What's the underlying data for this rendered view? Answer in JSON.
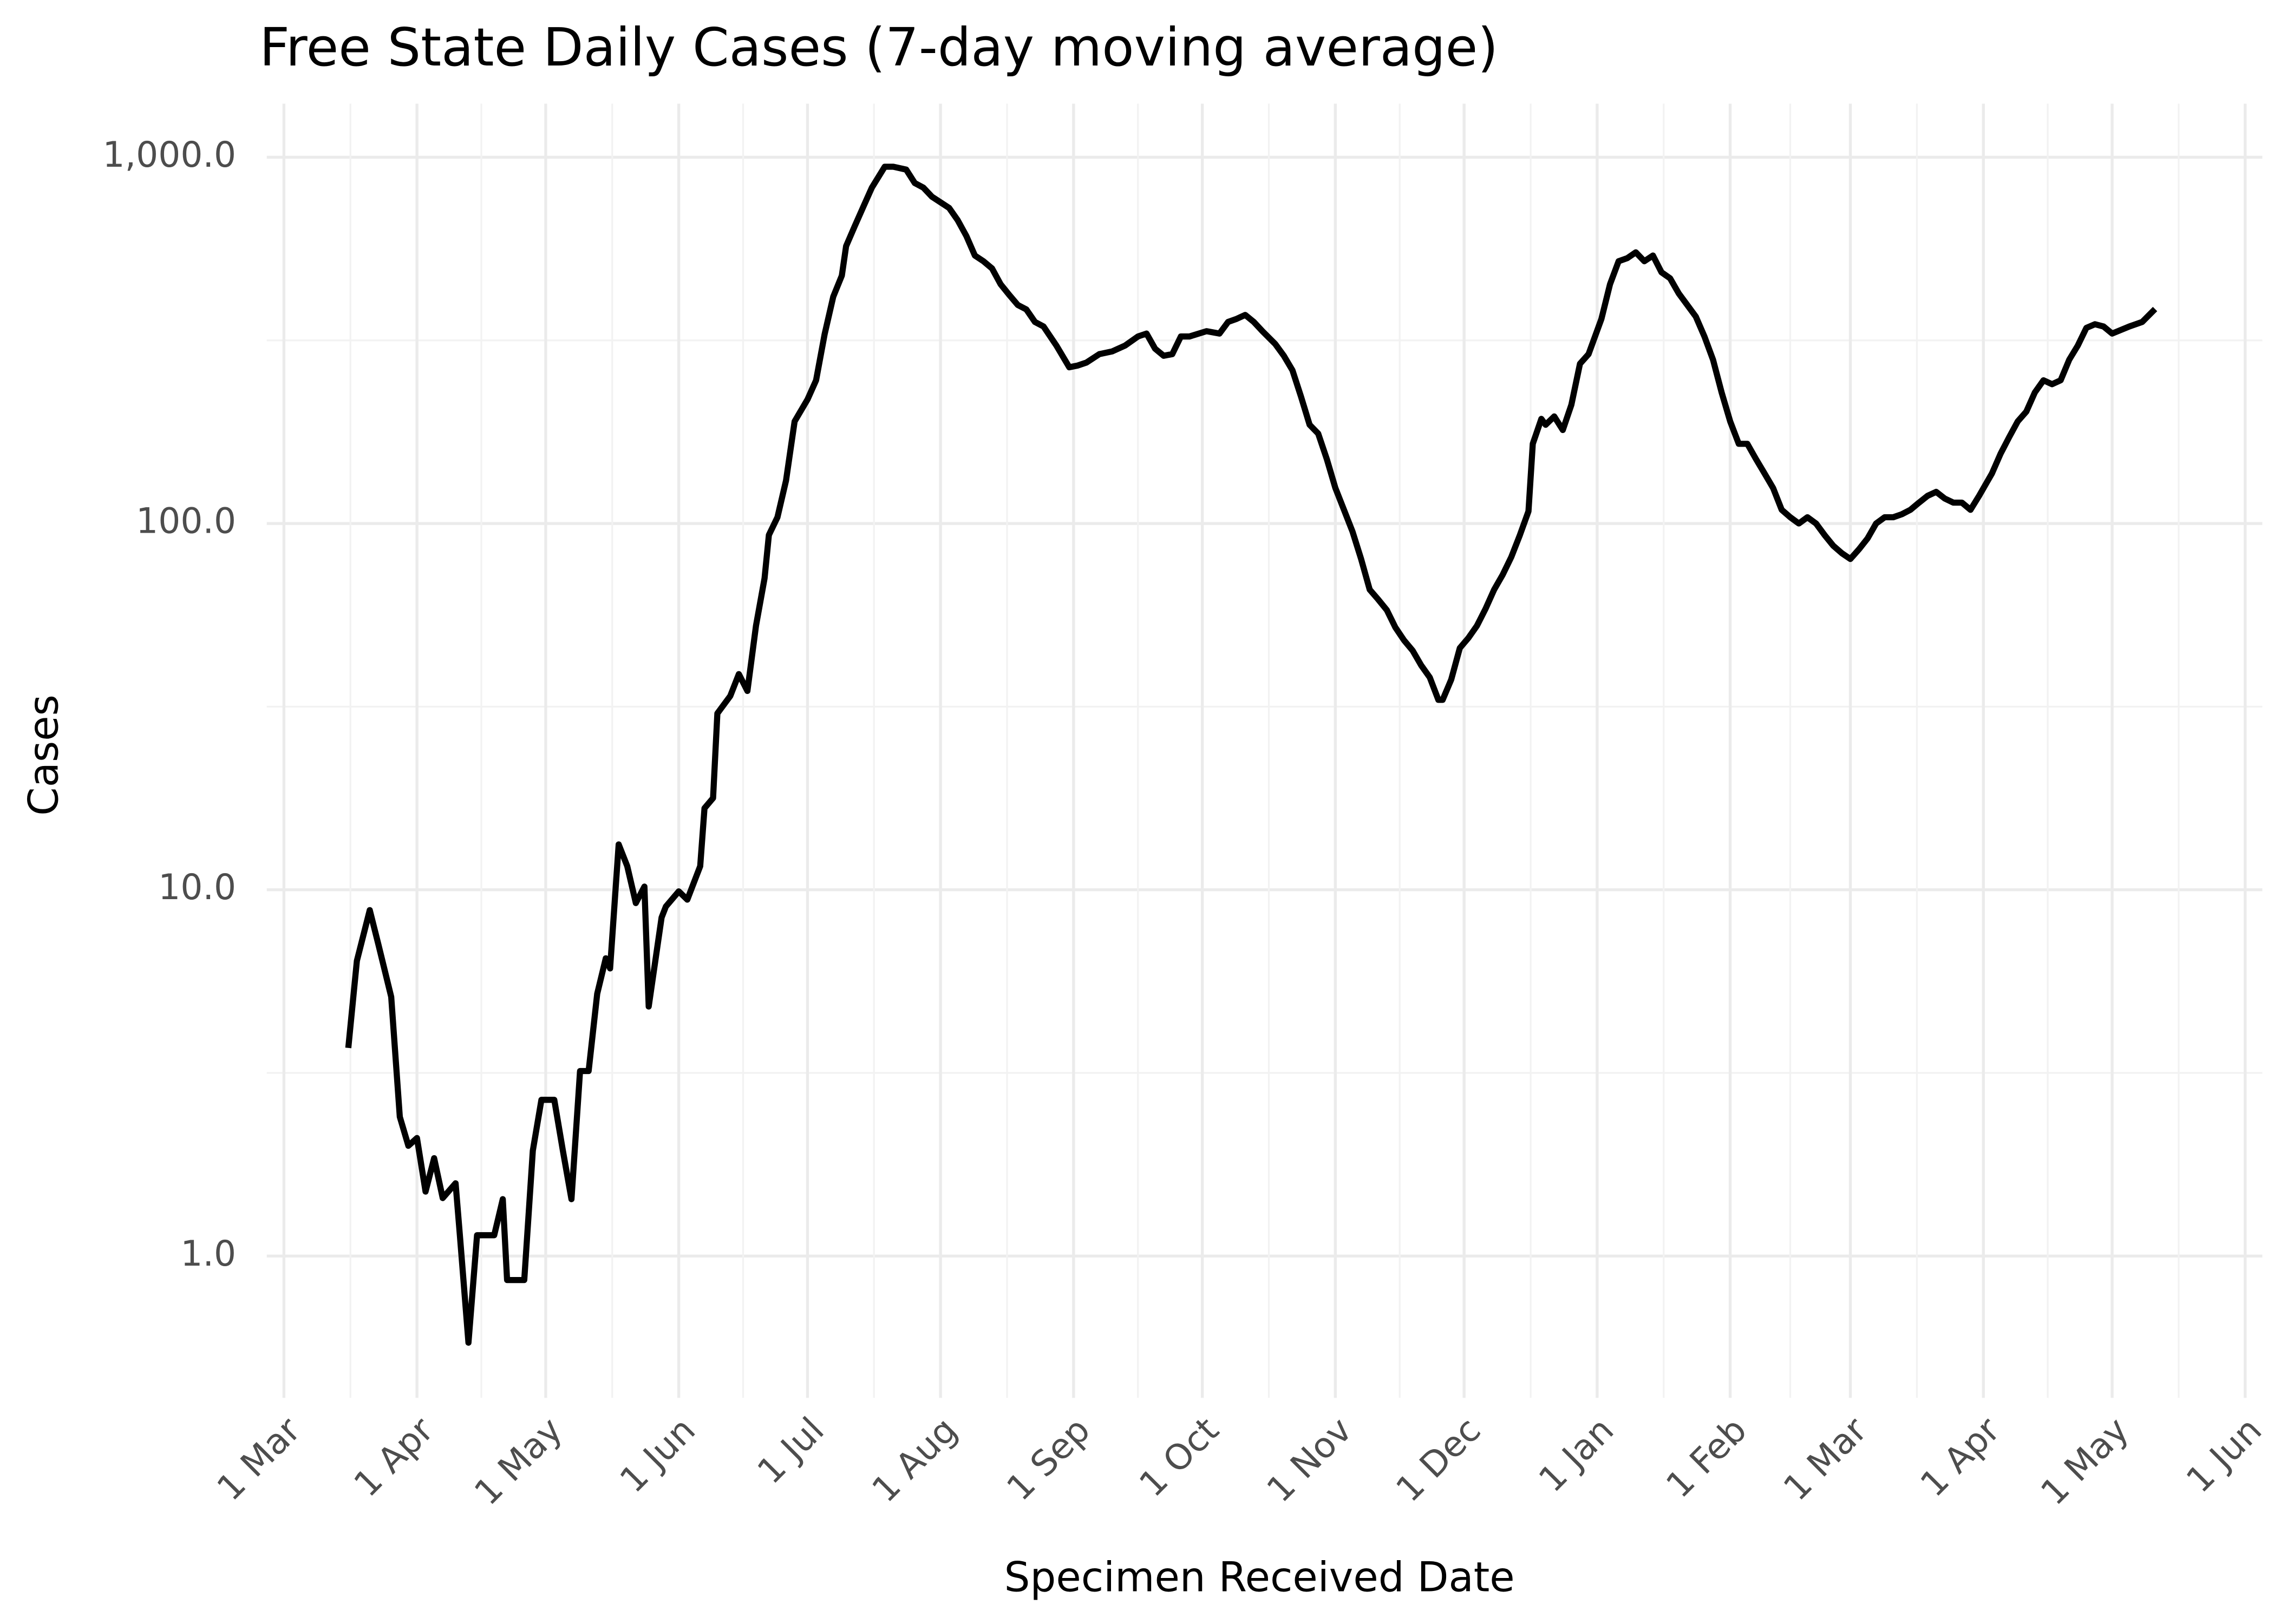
{
  "chart_data": {
    "type": "line",
    "title": "Free State Daily Cases (7-day moving average)",
    "x_label": "Specimen Received Date",
    "y_label": "Cases",
    "log_y": true,
    "grid": true,
    "color": "#000000",
    "ylim": [
      0.41,
      1400
    ],
    "yticks": [
      {
        "value": 1,
        "label": "1.0"
      },
      {
        "value": 10,
        "label": "10.0"
      },
      {
        "value": 100,
        "label": "100.0"
      },
      {
        "value": 1000,
        "label": "1,000.0"
      }
    ],
    "xlim": [
      "25 Feb",
      "5 Jun"
    ],
    "xticks": [
      "1 Mar",
      "1 Apr",
      "1 May",
      "1 Jun",
      "1 Jul",
      "1 Aug",
      "1 Sep",
      "1 Oct",
      "1 Nov",
      "1 Dec",
      "1 Jan",
      "1 Feb",
      "1 Mar",
      "1 Apr",
      "1 May",
      "1 Jun"
    ],
    "x": [
      "16 Mar",
      "18 Mar",
      "21 Mar",
      "23 Mar",
      "26 Mar",
      "28 Mar",
      "30 Mar",
      "1 Apr",
      "3 Apr",
      "5 Apr",
      "7 Apr",
      "10 Apr",
      "11 Apr",
      "13 Apr",
      "15 Apr",
      "19 Apr",
      "21 Apr",
      "22 Apr",
      "26 Apr",
      "28 Apr",
      "30 Apr",
      "3 May",
      "5 May",
      "7 May",
      "9 May",
      "11 May",
      "13 May",
      "15 May",
      "16 May",
      "18 May",
      "20 May",
      "22 May",
      "24 May",
      "25 May",
      "28 May",
      "29 May",
      "1 Jun",
      "3 Jun",
      "6 Jun",
      "7 Jun",
      "9 Jun",
      "10 Jun",
      "13 Jun",
      "15 Jun",
      "17 Jun",
      "19 Jun",
      "21 Jun",
      "22 Jun",
      "24 Jun",
      "26 Jun",
      "28 Jun",
      "1 Jul",
      "3 Jul",
      "5 Jul",
      "7 Jul",
      "9 Jul",
      "10 Jul",
      "12 Jul",
      "14 Jul",
      "16 Jul",
      "19 Jul",
      "21 Jul",
      "24 Jul",
      "26 Jul",
      "28 Jul",
      "30 Jul",
      "3 Aug",
      "5 Aug",
      "7 Aug",
      "9 Aug",
      "11 Aug",
      "13 Aug",
      "15 Aug",
      "17 Aug",
      "19 Aug",
      "21 Aug",
      "23 Aug",
      "25 Aug",
      "28 Aug",
      "31 Aug",
      "2 Sep",
      "4 Sep",
      "7 Sep",
      "10 Sep",
      "13 Sep",
      "16 Sep",
      "18 Sep",
      "20 Sep",
      "22 Sep",
      "24 Sep",
      "26 Sep",
      "28 Sep",
      "2 Oct",
      "5 Oct",
      "7 Oct",
      "9 Oct",
      "11 Oct",
      "13 Oct",
      "15 Oct",
      "18 Oct",
      "20 Oct",
      "22 Oct",
      "24 Oct",
      "26 Oct",
      "28 Oct",
      "30 Oct",
      "1 Nov",
      "3 Nov",
      "5 Nov",
      "7 Nov",
      "9 Nov",
      "11 Nov",
      "13 Nov",
      "15 Nov",
      "17 Nov",
      "19 Nov",
      "21 Nov",
      "23 Nov",
      "25 Nov",
      "26 Nov",
      "28 Nov",
      "30 Nov",
      "2 Dec",
      "4 Dec",
      "6 Dec",
      "8 Dec",
      "10 Dec",
      "12 Dec",
      "14 Dec",
      "16 Dec",
      "17 Dec",
      "19 Dec",
      "20 Dec",
      "22 Dec",
      "24 Dec",
      "26 Dec",
      "28 Dec",
      "30 Dec",
      "2 Jan",
      "4 Jan",
      "6 Jan",
      "8 Jan",
      "10 Jan",
      "12 Jan",
      "14 Jan",
      "16 Jan",
      "18 Jan",
      "20 Jan",
      "22 Jan",
      "24 Jan",
      "26 Jan",
      "28 Jan",
      "30 Jan",
      "1 Feb",
      "3 Feb",
      "5 Feb",
      "7 Feb",
      "9 Feb",
      "11 Feb",
      "13 Feb",
      "15 Feb",
      "17 Feb",
      "19 Feb",
      "21 Feb",
      "23 Feb",
      "25 Feb",
      "27 Feb",
      "1 Mar",
      "3 Mar",
      "5 Mar",
      "7 Mar",
      "9 Mar",
      "11 Mar",
      "13 Mar",
      "15 Mar",
      "17 Mar",
      "19 Mar",
      "21 Mar",
      "23 Mar",
      "25 Mar",
      "27 Mar",
      "29 Mar",
      "31 Mar",
      "3 Apr",
      "5 Apr",
      "7 Apr",
      "9 Apr",
      "11 Apr",
      "13 Apr",
      "15 Apr",
      "17 Apr",
      "19 Apr",
      "21 Apr",
      "23 Apr",
      "25 Apr",
      "27 Apr",
      "29 Apr",
      "1 May",
      "5 May",
      "8 May",
      "11 May"
    ],
    "values": [
      3.7,
      6.4,
      8.8,
      7.1,
      5.1,
      2.4,
      2.0,
      2.1,
      1.5,
      1.85,
      1.44,
      1.58,
      1.14,
      0.58,
      1.14,
      1.14,
      1.43,
      0.86,
      0.86,
      1.94,
      2.67,
      2.67,
      1.94,
      1.43,
      3.2,
      3.2,
      5.2,
      6.5,
      6.1,
      13.3,
      11.6,
      9.2,
      10.2,
      4.8,
      8.4,
      9.0,
      9.9,
      9.4,
      11.6,
      16.7,
      17.8,
      30.3,
      33.8,
      38.8,
      34.9,
      52.6,
      70.9,
      93,
      104,
      131,
      190,
      218,
      246,
      329,
      416,
      475,
      572,
      648,
      732,
      826,
      942,
      942,
      925,
      850,
      826,
      780,
      727,
      673,
      610,
      539,
      520,
      497,
      450,
      421,
      395,
      384,
      355,
      345,
      306,
      267,
      270,
      275,
      290,
      295,
      306,
      324,
      330,
      300,
      287,
      290,
      324,
      324,
      335,
      330,
      355,
      362,
      371,
      355,
      335,
      309,
      287,
      262,
      222,
      186,
      176,
      150,
      125,
      109,
      95,
      80,
      66,
      62,
      58,
      52,
      48,
      45,
      41,
      38,
      33,
      33,
      37.5,
      45.7,
      48.7,
      52.6,
      58.5,
      66,
      72.5,
      81,
      93,
      108,
      165,
      193,
      186,
      196,
      180,
      211,
      273,
      290,
      362,
      450,
      520,
      530,
      550,
      520,
      539,
      485,
      467,
      425,
      395,
      367,
      324,
      280,
      228,
      190,
      165,
      165,
      150,
      137,
      125,
      109,
      104,
      100,
      104,
      100,
      93,
      87,
      83,
      80,
      85,
      91,
      100,
      104,
      104,
      106,
      109,
      114,
      119,
      122,
      117,
      114,
      114,
      109,
      119,
      137,
      155,
      172,
      190,
      202,
      228,
      246,
      240,
      246,
      280,
      306,
      342,
      350,
      345,
      330,
      345,
      355,
      385
    ]
  }
}
